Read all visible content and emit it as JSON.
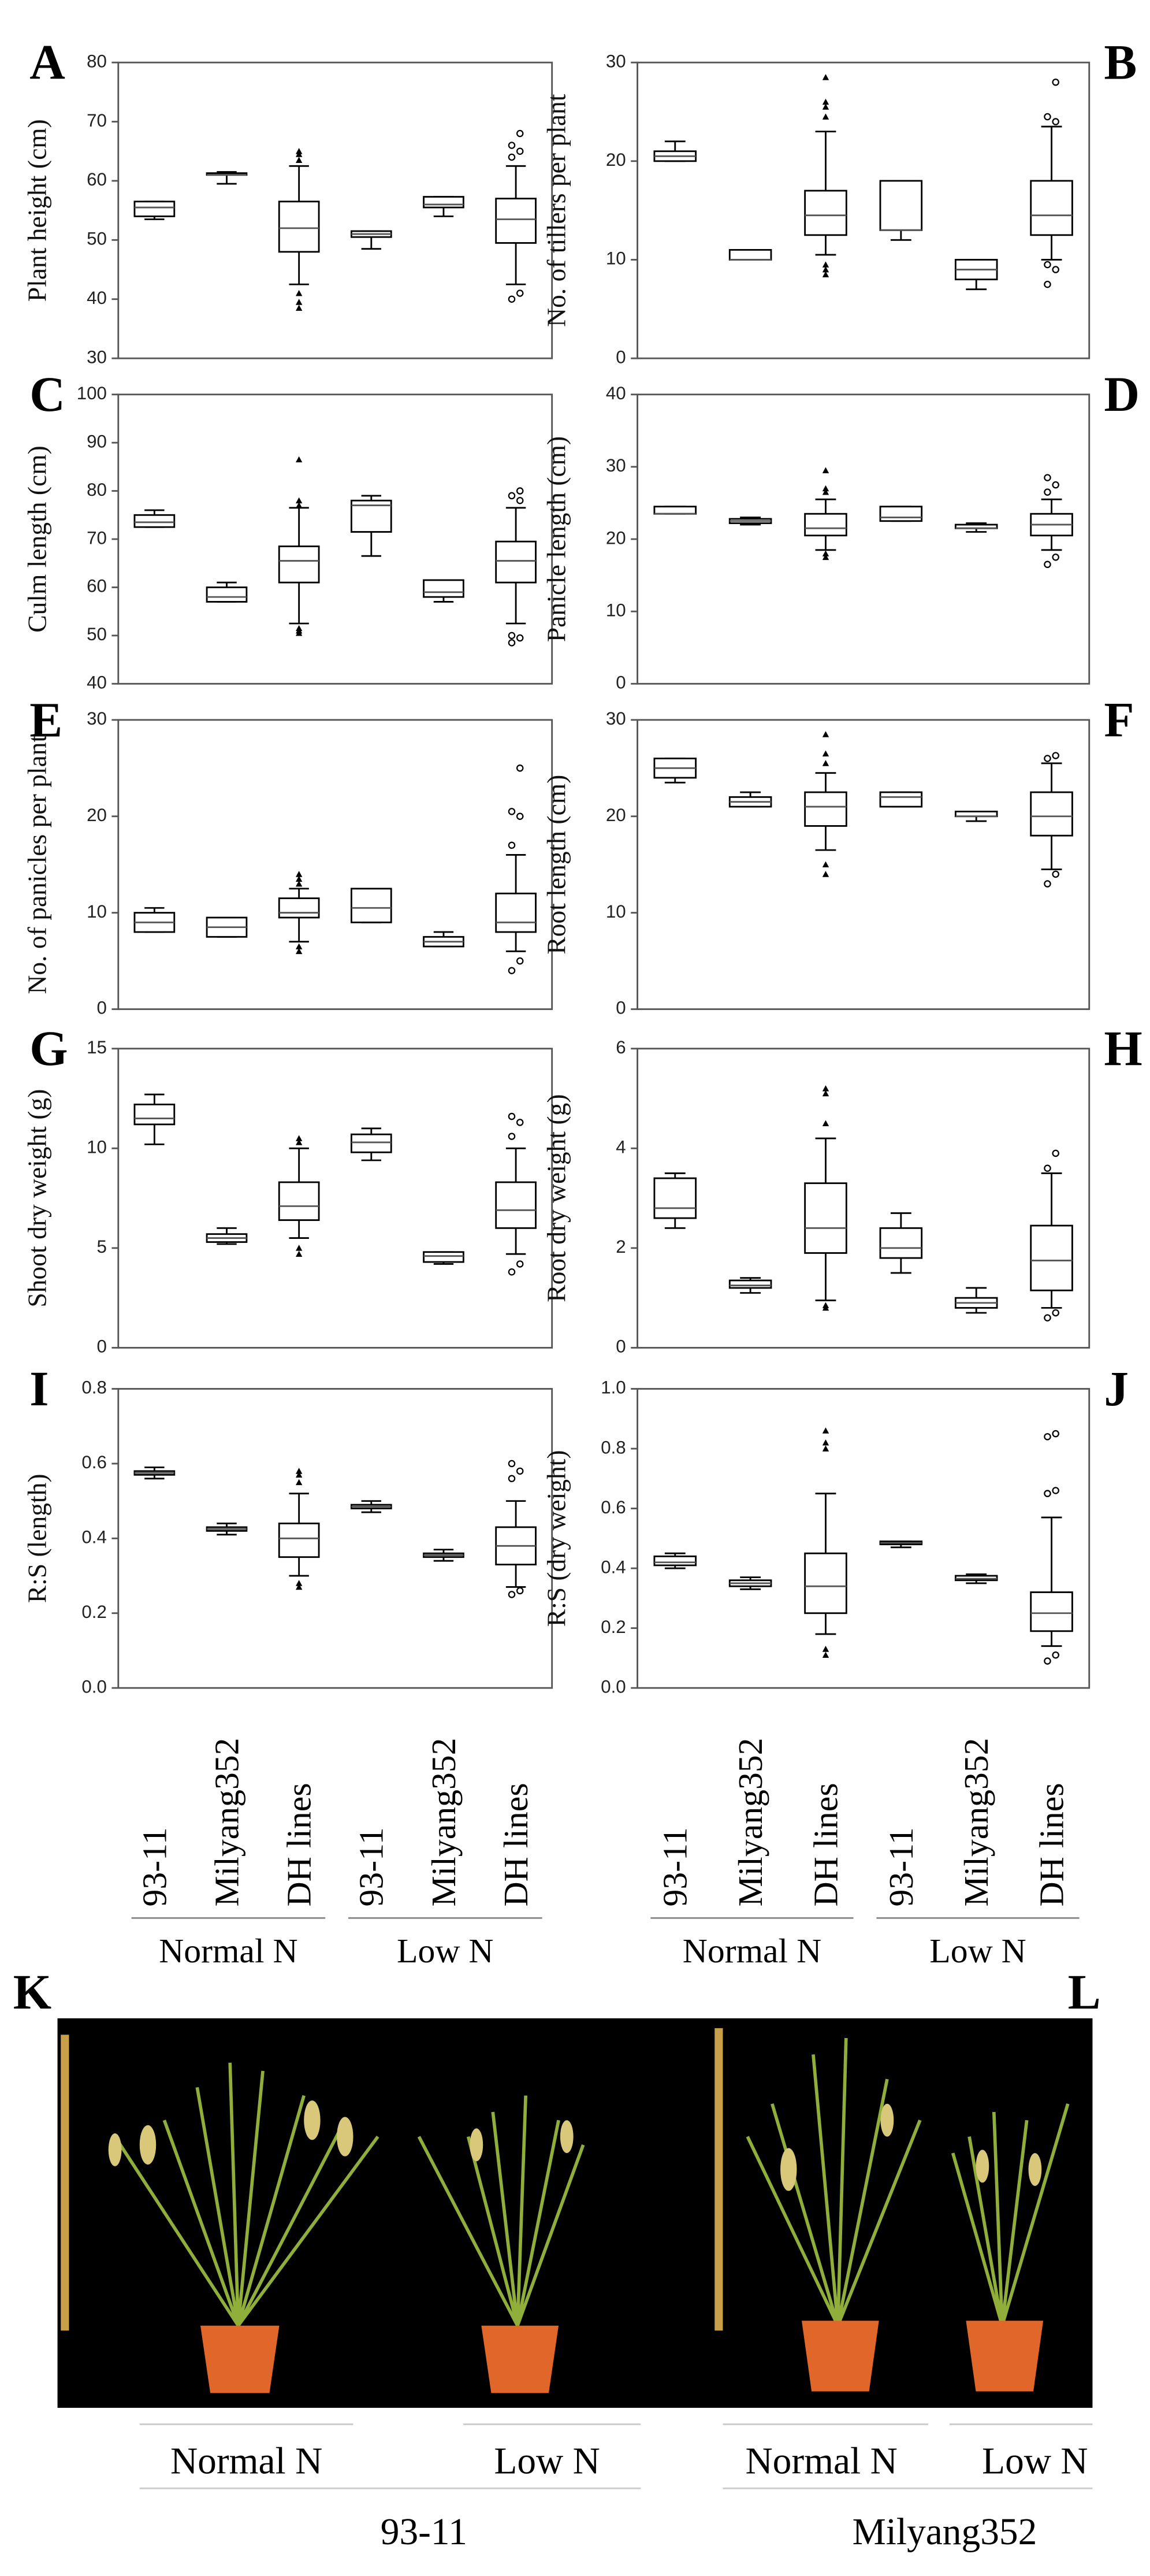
{
  "chart_data": [
    {
      "type": "box",
      "panel": "A",
      "y_label": "Plant height (cm)",
      "ylim": [
        30,
        80
      ],
      "yticks": [
        30,
        40,
        50,
        60,
        70,
        80
      ],
      "boxes": [
        {
          "min": 53.5,
          "q1": 54,
          "median": 55.5,
          "q3": 56.5,
          "max": 56.5,
          "outliers": []
        },
        {
          "min": 59.5,
          "q1": 61,
          "median": 61,
          "q3": 61.3,
          "max": 61.5,
          "outliers": []
        },
        {
          "min": 42.5,
          "q1": 48,
          "median": 52,
          "q3": 56.5,
          "max": 62.5,
          "outliers": [
            38.5,
            39.5,
            41,
            63.5,
            64.5,
            65
          ]
        },
        {
          "min": 48.5,
          "q1": 50.5,
          "median": 51,
          "q3": 51.5,
          "max": 51.5,
          "outliers": []
        },
        {
          "min": 54,
          "q1": 55.5,
          "median": 56,
          "q3": 57.3,
          "max": 57.3,
          "outliers": []
        },
        {
          "min": 42.5,
          "q1": 49.5,
          "median": 53.5,
          "q3": 57,
          "max": 62.5,
          "outliers": [
            40,
            41,
            64,
            65,
            66,
            68
          ]
        }
      ]
    },
    {
      "type": "box",
      "panel": "B",
      "y_label": "No. of tillers per plant",
      "ylim": [
        0,
        30
      ],
      "yticks": [
        0,
        10,
        20,
        30
      ],
      "boxes": [
        {
          "min": 20,
          "q1": 20,
          "median": 20.5,
          "q3": 21,
          "max": 22,
          "outliers": []
        },
        {
          "min": 10,
          "q1": 10,
          "median": 10,
          "q3": 11,
          "max": 11,
          "outliers": []
        },
        {
          "min": 10.5,
          "q1": 12.5,
          "median": 14.5,
          "q3": 17,
          "max": 23,
          "outliers": [
            8.5,
            9,
            9.5,
            24.5,
            25.5,
            26,
            28.5
          ]
        },
        {
          "min": 12,
          "q1": 13,
          "median": 13,
          "q3": 18,
          "max": 18,
          "outliers": []
        },
        {
          "min": 7,
          "q1": 8,
          "median": 9,
          "q3": 10,
          "max": 10,
          "outliers": []
        },
        {
          "min": 10,
          "q1": 12.5,
          "median": 14.5,
          "q3": 18,
          "max": 23.5,
          "outliers": [
            7.5,
            9,
            9.5,
            24,
            24.5,
            28
          ]
        }
      ]
    },
    {
      "type": "box",
      "panel": "C",
      "y_label": "Culm length (cm)",
      "ylim": [
        40,
        100
      ],
      "yticks": [
        40,
        50,
        60,
        70,
        80,
        90,
        100
      ],
      "boxes": [
        {
          "min": 72.5,
          "q1": 72.5,
          "median": 73.5,
          "q3": 75,
          "max": 76,
          "outliers": []
        },
        {
          "min": 57,
          "q1": 57,
          "median": 58,
          "q3": 60,
          "max": 61,
          "outliers": []
        },
        {
          "min": 52.5,
          "q1": 61,
          "median": 65.5,
          "q3": 68.5,
          "max": 76.5,
          "outliers": [
            50.5,
            51,
            51.5,
            77,
            78,
            86.5
          ]
        },
        {
          "min": 66.5,
          "q1": 71.5,
          "median": 77,
          "q3": 78,
          "max": 79,
          "outliers": []
        },
        {
          "min": 57,
          "q1": 58,
          "median": 59,
          "q3": 61.5,
          "max": 61.5,
          "outliers": []
        },
        {
          "min": 52.5,
          "q1": 61,
          "median": 65.5,
          "q3": 69.5,
          "max": 76.5,
          "outliers": [
            48.5,
            49.5,
            50,
            78,
            79,
            80
          ]
        }
      ]
    },
    {
      "type": "box",
      "panel": "D",
      "y_label": "Panicle length (cm)",
      "ylim": [
        0,
        40
      ],
      "yticks": [
        0,
        10,
        20,
        30,
        40
      ],
      "boxes": [
        {
          "min": 23.5,
          "q1": 23.5,
          "median": 23.5,
          "q3": 24.5,
          "max": 24.5,
          "outliers": []
        },
        {
          "min": 22,
          "q1": 22.2,
          "median": 22.5,
          "q3": 22.8,
          "max": 23,
          "outliers": []
        },
        {
          "min": 18.5,
          "q1": 20.5,
          "median": 21.5,
          "q3": 23.5,
          "max": 25.5,
          "outliers": [
            17.5,
            18,
            26.5,
            27,
            29.5
          ]
        },
        {
          "min": 22.5,
          "q1": 22.5,
          "median": 23,
          "q3": 24.5,
          "max": 24.5,
          "outliers": []
        },
        {
          "min": 21,
          "q1": 21.5,
          "median": 21.5,
          "q3": 22,
          "max": 22.2,
          "outliers": []
        },
        {
          "min": 18.5,
          "q1": 20.5,
          "median": 22,
          "q3": 23.5,
          "max": 25.5,
          "outliers": [
            16.5,
            17.5,
            26.5,
            27.5,
            28.5
          ]
        }
      ]
    },
    {
      "type": "box",
      "panel": "E",
      "y_label": "No. of panicles per plant",
      "ylim": [
        0,
        30
      ],
      "yticks": [
        0,
        10,
        20,
        30
      ],
      "boxes": [
        {
          "min": 8,
          "q1": 8,
          "median": 9,
          "q3": 10,
          "max": 10.5,
          "outliers": []
        },
        {
          "min": 7.5,
          "q1": 7.5,
          "median": 8.5,
          "q3": 9.5,
          "max": 9.5,
          "outliers": []
        },
        {
          "min": 7,
          "q1": 9.5,
          "median": 10,
          "q3": 11.5,
          "max": 12.5,
          "outliers": [
            6,
            6.5,
            13,
            13.5,
            14
          ]
        },
        {
          "min": 9,
          "q1": 9,
          "median": 10.5,
          "q3": 12.5,
          "max": 12.5,
          "outliers": []
        },
        {
          "min": 6.5,
          "q1": 6.5,
          "median": 7,
          "q3": 7.5,
          "max": 8,
          "outliers": []
        },
        {
          "min": 6,
          "q1": 8,
          "median": 9,
          "q3": 12,
          "max": 16,
          "outliers": [
            4,
            5,
            17,
            20,
            20.5,
            25
          ]
        }
      ]
    },
    {
      "type": "box",
      "panel": "F",
      "y_label": "Root length (cm)",
      "ylim": [
        0,
        30
      ],
      "yticks": [
        0,
        10,
        20,
        30
      ],
      "boxes": [
        {
          "min": 23.5,
          "q1": 24,
          "median": 25,
          "q3": 26,
          "max": 26,
          "outliers": []
        },
        {
          "min": 21,
          "q1": 21,
          "median": 21.5,
          "q3": 22,
          "max": 22.5,
          "outliers": []
        },
        {
          "min": 16.5,
          "q1": 19,
          "median": 21,
          "q3": 22.5,
          "max": 24.5,
          "outliers": [
            14,
            15,
            25.5,
            26.5,
            28.5
          ]
        },
        {
          "min": 21,
          "q1": 21,
          "median": 22,
          "q3": 22.5,
          "max": 22.5,
          "outliers": []
        },
        {
          "min": 19.5,
          "q1": 20,
          "median": 20,
          "q3": 20.5,
          "max": 20.5,
          "outliers": []
        },
        {
          "min": 14.5,
          "q1": 18,
          "median": 20,
          "q3": 22.5,
          "max": 25.5,
          "outliers": [
            13,
            14,
            26,
            26.3
          ]
        }
      ]
    },
    {
      "type": "box",
      "panel": "G",
      "y_label": "Shoot dry weight (g)",
      "ylim": [
        0,
        15
      ],
      "yticks": [
        0,
        5,
        10,
        15
      ],
      "boxes": [
        {
          "min": 10.2,
          "q1": 11.2,
          "median": 11.5,
          "q3": 12.2,
          "max": 12.7,
          "outliers": []
        },
        {
          "min": 5.2,
          "q1": 5.3,
          "median": 5.5,
          "q3": 5.7,
          "max": 6,
          "outliers": []
        },
        {
          "min": 5.5,
          "q1": 6.4,
          "median": 7.1,
          "q3": 8.3,
          "max": 10,
          "outliers": [
            4.7,
            5,
            10.3,
            10.5
          ]
        },
        {
          "min": 9.4,
          "q1": 9.8,
          "median": 10.3,
          "q3": 10.7,
          "max": 11,
          "outliers": []
        },
        {
          "min": 4.2,
          "q1": 4.3,
          "median": 4.6,
          "q3": 4.8,
          "max": 4.8,
          "outliers": []
        },
        {
          "min": 4.7,
          "q1": 6,
          "median": 6.9,
          "q3": 8.3,
          "max": 10,
          "outliers": [
            3.8,
            4.2,
            10.6,
            11.3,
            11.6
          ]
        }
      ]
    },
    {
      "type": "box",
      "panel": "H",
      "y_label": "Root dry weight (g)",
      "ylim": [
        0,
        6
      ],
      "yticks": [
        0,
        2,
        4,
        6
      ],
      "boxes": [
        {
          "min": 2.4,
          "q1": 2.6,
          "median": 2.8,
          "q3": 3.4,
          "max": 3.5,
          "outliers": []
        },
        {
          "min": 1.1,
          "q1": 1.2,
          "median": 1.25,
          "q3": 1.35,
          "max": 1.4,
          "outliers": []
        },
        {
          "min": 0.95,
          "q1": 1.9,
          "median": 2.4,
          "q3": 3.3,
          "max": 4.2,
          "outliers": [
            0.8,
            0.85,
            4.5,
            5.1,
            5.2
          ]
        },
        {
          "min": 1.5,
          "q1": 1.8,
          "median": 2,
          "q3": 2.4,
          "max": 2.7,
          "outliers": []
        },
        {
          "min": 0.7,
          "q1": 0.8,
          "median": 0.9,
          "q3": 1,
          "max": 1.2,
          "outliers": []
        },
        {
          "min": 0.8,
          "q1": 1.15,
          "median": 1.75,
          "q3": 2.45,
          "max": 3.5,
          "outliers": [
            0.6,
            0.7,
            3.6,
            3.9
          ]
        }
      ]
    },
    {
      "type": "box",
      "panel": "I",
      "y_label": "R:S (length)",
      "ylim": [
        0,
        0.8
      ],
      "yticks": [
        {
          "value": 0,
          "label": "0.0"
        },
        0.2,
        0.4,
        0.6,
        0.8
      ],
      "categories": [
        "93-11",
        "Milyang352",
        "DH lines",
        "93-11",
        "Milyang352",
        "DH lines"
      ],
      "groups": [
        "Normal N",
        "Low N"
      ],
      "boxes": [
        {
          "min": 0.56,
          "q1": 0.57,
          "median": 0.575,
          "q3": 0.58,
          "max": 0.59,
          "outliers": []
        },
        {
          "min": 0.41,
          "q1": 0.42,
          "median": 0.425,
          "q3": 0.43,
          "max": 0.44,
          "outliers": []
        },
        {
          "min": 0.3,
          "q1": 0.35,
          "median": 0.4,
          "q3": 0.44,
          "max": 0.52,
          "outliers": [
            0.27,
            0.28,
            0.55,
            0.57,
            0.58
          ]
        },
        {
          "min": 0.47,
          "q1": 0.48,
          "median": 0.485,
          "q3": 0.49,
          "max": 0.5,
          "outliers": []
        },
        {
          "min": 0.34,
          "q1": 0.35,
          "median": 0.355,
          "q3": 0.36,
          "max": 0.37,
          "outliers": []
        },
        {
          "min": 0.27,
          "q1": 0.33,
          "median": 0.38,
          "q3": 0.43,
          "max": 0.5,
          "outliers": [
            0.25,
            0.26,
            0.56,
            0.58,
            0.6
          ]
        }
      ]
    },
    {
      "type": "box",
      "panel": "J",
      "y_label": "R:S (dry weight)",
      "ylim": [
        0,
        1
      ],
      "yticks": [
        {
          "value": 0,
          "label": "0.0"
        },
        0.2,
        0.4,
        0.6,
        0.8,
        {
          "value": 1,
          "label": "1.0"
        }
      ],
      "categories": [
        "93-11",
        "Milyang352",
        "DH lines",
        "93-11",
        "Milyang352",
        "DH lines"
      ],
      "groups": [
        "Normal N",
        "Low N"
      ],
      "boxes": [
        {
          "min": 0.4,
          "q1": 0.41,
          "median": 0.42,
          "q3": 0.44,
          "max": 0.45,
          "outliers": []
        },
        {
          "min": 0.33,
          "q1": 0.34,
          "median": 0.35,
          "q3": 0.36,
          "max": 0.37,
          "outliers": []
        },
        {
          "min": 0.18,
          "q1": 0.25,
          "median": 0.34,
          "q3": 0.45,
          "max": 0.65,
          "outliers": [
            0.11,
            0.13,
            0.8,
            0.82,
            0.86
          ]
        },
        {
          "min": 0.47,
          "q1": 0.48,
          "median": 0.485,
          "q3": 0.49,
          "max": 0.49,
          "outliers": []
        },
        {
          "min": 0.35,
          "q1": 0.36,
          "median": 0.365,
          "q3": 0.375,
          "max": 0.38,
          "outliers": []
        },
        {
          "min": 0.14,
          "q1": 0.19,
          "median": 0.25,
          "q3": 0.32,
          "max": 0.57,
          "outliers": [
            0.09,
            0.11,
            0.65,
            0.66,
            0.84,
            0.85
          ]
        }
      ]
    }
  ],
  "photos": [
    {
      "panel": "K",
      "cultivar": "93-11",
      "conditions": [
        "Normal N",
        "Low N"
      ]
    },
    {
      "panel": "L",
      "cultivar": "Milyang352",
      "conditions": [
        "Normal N",
        "Low N"
      ]
    }
  ]
}
